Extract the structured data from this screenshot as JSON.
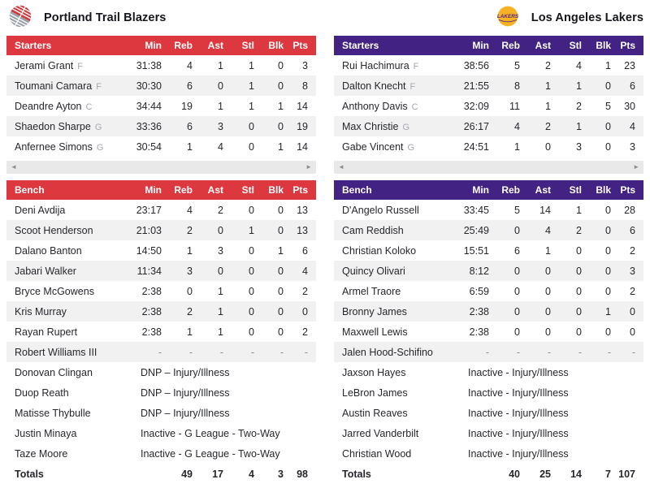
{
  "columns": [
    "Min",
    "Reb",
    "Ast",
    "Stl",
    "Blk",
    "Pts"
  ],
  "ui": {
    "scroll_left_icon": "◄",
    "scroll_right_icon": "►"
  },
  "teams": [
    {
      "slug": "trail-blazers",
      "name": "Portland Trail Blazers",
      "accent": "#dd383f",
      "logo_colors": {
        "primary": "#cf3a40",
        "secondary": "#9aa0a6"
      },
      "starters_label": "Starters",
      "bench_label": "Bench",
      "totals_label": "Totals",
      "starters": [
        {
          "name": "Jerami Grant",
          "pos": "F",
          "stats": [
            "31:38",
            "4",
            "1",
            "1",
            "0",
            "3"
          ]
        },
        {
          "name": "Toumani Camara",
          "pos": "F",
          "stats": [
            "30:30",
            "6",
            "0",
            "1",
            "0",
            "8"
          ]
        },
        {
          "name": "Deandre Ayton",
          "pos": "C",
          "stats": [
            "34:44",
            "19",
            "1",
            "1",
            "1",
            "14"
          ]
        },
        {
          "name": "Shaedon Sharpe",
          "pos": "G",
          "stats": [
            "33:36",
            "6",
            "3",
            "0",
            "0",
            "19"
          ]
        },
        {
          "name": "Anfernee Simons",
          "pos": "G",
          "stats": [
            "30:54",
            "1",
            "4",
            "0",
            "1",
            "14"
          ]
        }
      ],
      "bench": [
        {
          "name": "Deni Avdija",
          "stats": [
            "23:17",
            "4",
            "2",
            "0",
            "0",
            "13"
          ]
        },
        {
          "name": "Scoot Henderson",
          "stats": [
            "21:03",
            "2",
            "0",
            "1",
            "0",
            "13"
          ]
        },
        {
          "name": "Dalano Banton",
          "stats": [
            "14:50",
            "1",
            "3",
            "0",
            "1",
            "6"
          ]
        },
        {
          "name": "Jabari Walker",
          "stats": [
            "11:34",
            "3",
            "0",
            "0",
            "0",
            "4"
          ]
        },
        {
          "name": "Bryce McGowens",
          "stats": [
            "2:38",
            "0",
            "1",
            "0",
            "0",
            "2"
          ]
        },
        {
          "name": "Kris Murray",
          "stats": [
            "2:38",
            "2",
            "1",
            "0",
            "0",
            "0"
          ]
        },
        {
          "name": "Rayan Rupert",
          "stats": [
            "2:38",
            "1",
            "1",
            "0",
            "0",
            "2"
          ]
        },
        {
          "name": "Robert Williams III",
          "stats": [
            "-",
            "-",
            "-",
            "-",
            "-",
            "-"
          ]
        },
        {
          "name": "Donovan Clingan",
          "status": "DNP – Injury/Illness"
        },
        {
          "name": "Duop Reath",
          "status": "DNP – Injury/Illness"
        },
        {
          "name": "Matisse Thybulle",
          "status": "DNP – Injury/Illness"
        },
        {
          "name": "Justin Minaya",
          "status": "Inactive - G League - Two-Way"
        },
        {
          "name": "Taze Moore",
          "status": "Inactive - G League - Two-Way"
        }
      ],
      "totals": [
        "",
        "49",
        "17",
        "4",
        "3",
        "98"
      ]
    },
    {
      "slug": "lakers",
      "name": "Los Angeles Lakers",
      "accent": "#422282",
      "logo_colors": {
        "primary": "#f7b223",
        "secondary": "#552583"
      },
      "starters_label": "Starters",
      "bench_label": "Bench",
      "totals_label": "Totals",
      "starters": [
        {
          "name": "Rui Hachimura",
          "pos": "F",
          "stats": [
            "38:56",
            "5",
            "2",
            "4",
            "1",
            "23"
          ]
        },
        {
          "name": "Dalton Knecht",
          "pos": "F",
          "stats": [
            "21:55",
            "8",
            "1",
            "1",
            "0",
            "6"
          ]
        },
        {
          "name": "Anthony Davis",
          "pos": "C",
          "stats": [
            "32:09",
            "11",
            "1",
            "2",
            "5",
            "30"
          ]
        },
        {
          "name": "Max Christie",
          "pos": "G",
          "stats": [
            "26:17",
            "4",
            "2",
            "1",
            "0",
            "4"
          ]
        },
        {
          "name": "Gabe Vincent",
          "pos": "G",
          "stats": [
            "24:51",
            "1",
            "0",
            "3",
            "0",
            "3"
          ]
        }
      ],
      "bench": [
        {
          "name": "D'Angelo Russell",
          "stats": [
            "33:45",
            "5",
            "14",
            "1",
            "0",
            "28"
          ]
        },
        {
          "name": "Cam Reddish",
          "stats": [
            "25:49",
            "0",
            "4",
            "2",
            "0",
            "6"
          ]
        },
        {
          "name": "Christian Koloko",
          "stats": [
            "15:51",
            "6",
            "1",
            "0",
            "0",
            "2"
          ]
        },
        {
          "name": "Quincy Olivari",
          "stats": [
            "8:12",
            "0",
            "0",
            "0",
            "0",
            "3"
          ]
        },
        {
          "name": "Armel Traore",
          "stats": [
            "6:59",
            "0",
            "0",
            "0",
            "0",
            "2"
          ]
        },
        {
          "name": "Bronny James",
          "stats": [
            "2:38",
            "0",
            "0",
            "0",
            "1",
            "0"
          ]
        },
        {
          "name": "Maxwell Lewis",
          "stats": [
            "2:38",
            "0",
            "0",
            "0",
            "0",
            "0"
          ]
        },
        {
          "name": "Jalen Hood-Schifino",
          "stats": [
            "-",
            "-",
            "-",
            "-",
            "-",
            "-"
          ]
        },
        {
          "name": "Jaxson Hayes",
          "status": "Inactive - Injury/Illness"
        },
        {
          "name": "LeBron James",
          "status": "Inactive - Injury/Illness"
        },
        {
          "name": "Austin Reaves",
          "status": "Inactive - Injury/Illness"
        },
        {
          "name": "Jarred Vanderbilt",
          "status": "Inactive - Injury/Illness"
        },
        {
          "name": "Christian Wood",
          "status": "Inactive - Injury/Illness"
        }
      ],
      "totals": [
        "",
        "40",
        "25",
        "14",
        "7",
        "107"
      ]
    }
  ]
}
